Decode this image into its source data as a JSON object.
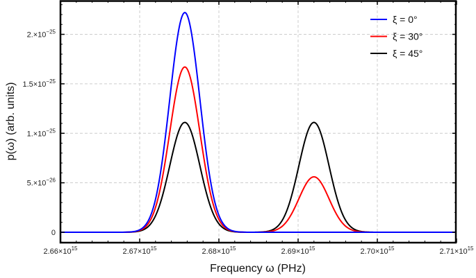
{
  "chart_data": {
    "type": "line",
    "xlabel": "Frequency ω (PHz)",
    "ylabel": "p(ω) (arb. units)",
    "xlim": [
      2660000000000000.0,
      2710000000000000.0
    ],
    "ylim": [
      -1.05e-26,
      2.34e-25
    ],
    "grid": true,
    "legend_position": "top-right",
    "x_ticks": [
      {
        "value": 2660000000000000.0,
        "mantissa": "2.66×10",
        "exponent": "15"
      },
      {
        "value": 2670000000000000.0,
        "mantissa": "2.67×10",
        "exponent": "15"
      },
      {
        "value": 2680000000000000.0,
        "mantissa": "2.68×10",
        "exponent": "15"
      },
      {
        "value": 2690000000000000.0,
        "mantissa": "2.69×10",
        "exponent": "15"
      },
      {
        "value": 2700000000000000.0,
        "mantissa": "2.70×10",
        "exponent": "15"
      },
      {
        "value": 2710000000000000.0,
        "mantissa": "2.71×10",
        "exponent": "15"
      }
    ],
    "y_ticks": [
      {
        "value": 0,
        "mantissa": "0",
        "exponent": ""
      },
      {
        "value": 5e-26,
        "mantissa": "5.×10",
        "exponent": "−26"
      },
      {
        "value": 1e-25,
        "mantissa": "1.×10",
        "exponent": "−25"
      },
      {
        "value": 1.5e-25,
        "mantissa": "1.5×10",
        "exponent": "−25"
      },
      {
        "value": 2e-25,
        "mantissa": "2.×10",
        "exponent": "−25"
      }
    ],
    "peak_width_sigma": 1900000000000.0,
    "series": [
      {
        "name": "ξ = 0°",
        "color": "#0000ff",
        "peaks": [
          {
            "center": 2675700000000000.0,
            "amplitude": 2.22e-25
          }
        ]
      },
      {
        "name": "ξ = 30°",
        "color": "#ff0000",
        "peaks": [
          {
            "center": 2675700000000000.0,
            "amplitude": 1.67e-25
          },
          {
            "center": 2692000000000000.0,
            "amplitude": 5.6e-26
          }
        ]
      },
      {
        "name": "ξ = 45°",
        "color": "#000000",
        "peaks": [
          {
            "center": 2675700000000000.0,
            "amplitude": 1.11e-25
          },
          {
            "center": 2692000000000000.0,
            "amplitude": 1.11e-25
          }
        ]
      }
    ]
  }
}
